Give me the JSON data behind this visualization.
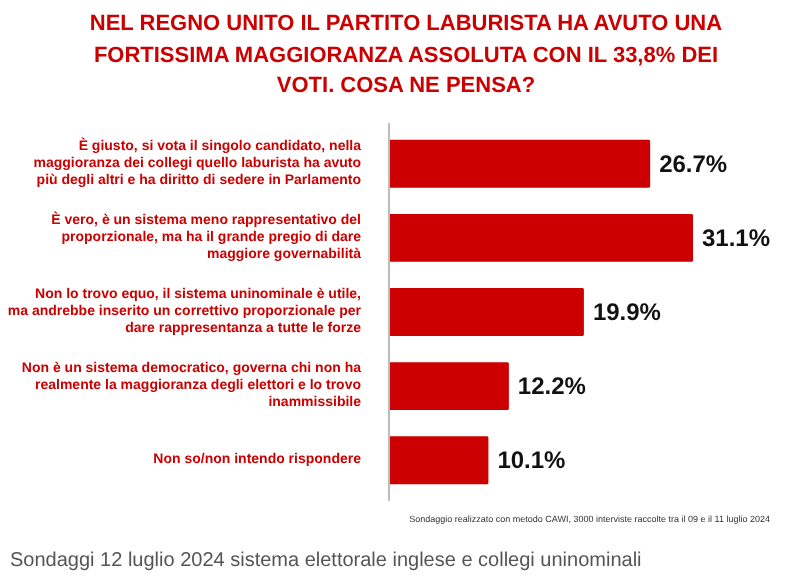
{
  "chart_data": {
    "type": "bar",
    "orientation": "horizontal",
    "title": "NEL REGNO UNITO IL PARTITO LABURISTA HA AVUTO UNA FORTISSIMA MAGGIORANZA ASSOLUTA CON IL 33,8% DEI VOTI. COSA NE PENSA?",
    "categories": [
      "È giusto, si vota il singolo candidato, nella maggioranza dei collegi quello laburista ha avuto più degli altri e ha diritto di sedere in Parlamento",
      "È vero, è un sistema meno rappresentativo del proporzionale, ma ha il grande pregio di dare maggiore governabilità",
      "Non lo trovo equo, il sistema uninominale è utile, ma andrebbe inserito un correttivo proporzionale per dare rappresentanza a tutte le forze",
      "Non è un sistema democratico, governa chi non ha realmente la maggioranza degli elettori e lo trovo inammissibile",
      "Non so/non intendo rispondere"
    ],
    "values": [
      26.7,
      31.1,
      19.9,
      12.2,
      10.1
    ],
    "value_labels": [
      "26.7%",
      "31.1%",
      "19.9%",
      "12.2%",
      "10.1%"
    ],
    "color": "#cc0000",
    "annotations": [
      "Sondaggio realizzato con metodo CAWI, 3000 interviste raccolte tra il 09 e il 11 luglio 2024",
      "Sondaggi 12 luglio 2024 sistema elettorale inglese e collegi uninominali"
    ]
  }
}
